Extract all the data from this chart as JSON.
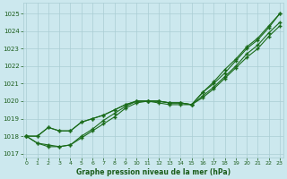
{
  "title": "Graphe pression niveau de la mer (hPa)",
  "xlabel_hours": [
    0,
    1,
    2,
    3,
    4,
    5,
    6,
    7,
    8,
    9,
    10,
    11,
    12,
    13,
    14,
    15,
    16,
    17,
    18,
    19,
    20,
    21,
    22,
    23
  ],
  "series": [
    [
      1018.0,
      1017.6,
      1017.5,
      1017.4,
      1017.5,
      1018.0,
      1018.4,
      1018.9,
      1019.3,
      1019.7,
      1020.0,
      1020.0,
      1020.0,
      1019.9,
      1019.9,
      1019.8,
      1020.5,
      1021.0,
      1021.6,
      1022.3,
      1023.0,
      1023.5,
      1024.2,
      1025.0
    ],
    [
      1018.0,
      1017.6,
      1017.4,
      1017.4,
      1017.5,
      1017.9,
      1018.3,
      1018.7,
      1019.1,
      1019.6,
      1019.9,
      1020.0,
      1019.9,
      1019.8,
      1019.8,
      1019.8,
      1020.3,
      1020.8,
      1021.4,
      1022.0,
      1022.7,
      1023.2,
      1023.9,
      1024.5
    ],
    [
      1018.0,
      1018.0,
      1018.5,
      1018.3,
      1018.3,
      1018.8,
      1019.0,
      1019.2,
      1019.5,
      1019.8,
      1020.0,
      1020.0,
      1020.0,
      1019.9,
      1019.9,
      1019.8,
      1020.5,
      1021.1,
      1021.8,
      1022.4,
      1023.1,
      1023.6,
      1024.3,
      1025.0
    ],
    [
      1018.0,
      1018.0,
      1018.5,
      1018.3,
      1018.3,
      1018.8,
      1019.0,
      1019.2,
      1019.5,
      1019.8,
      1020.0,
      1020.0,
      1020.0,
      1019.9,
      1019.9,
      1019.8,
      1020.2,
      1020.7,
      1021.3,
      1021.9,
      1022.5,
      1023.0,
      1023.7,
      1024.3
    ]
  ],
  "line_color": "#1a6b1a",
  "marker": "+",
  "marker_size": 3.5,
  "line_width": 0.8,
  "bg_color": "#cce8ee",
  "grid_color": "#aacdd4",
  "text_color": "#1a5c1a",
  "ylim": [
    1016.8,
    1025.6
  ],
  "yticks": [
    1017,
    1018,
    1019,
    1020,
    1021,
    1022,
    1023,
    1024,
    1025
  ],
  "xlim": [
    -0.3,
    23.3
  ],
  "figsize": [
    3.2,
    2.0
  ],
  "dpi": 100
}
